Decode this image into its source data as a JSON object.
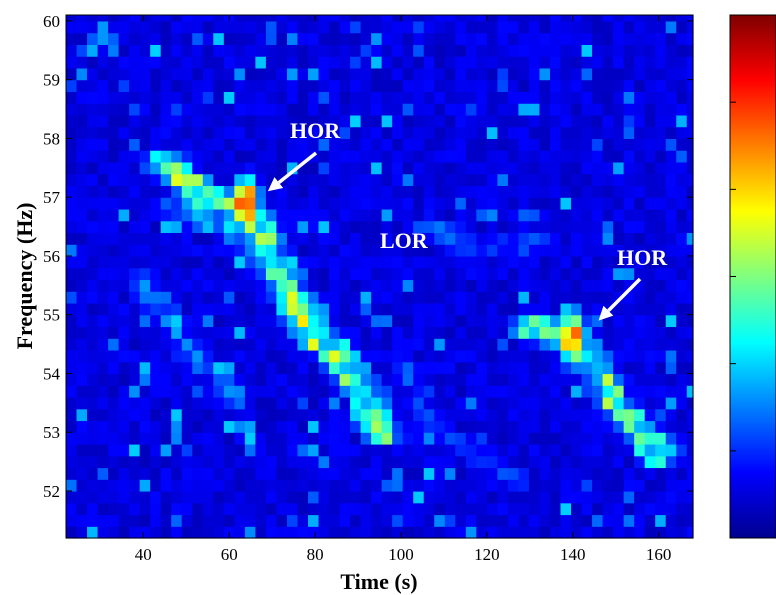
{
  "chart_data": {
    "type": "heatmap",
    "title": "",
    "xlabel": "Time (s)",
    "ylabel": "Frequency (Hz)",
    "xlim": [
      22,
      168
    ],
    "ylim": [
      51.2,
      60.1
    ],
    "x_ticks": [
      40,
      60,
      80,
      100,
      120,
      140,
      160
    ],
    "y_ticks": [
      52,
      53,
      54,
      55,
      56,
      57,
      58,
      59,
      60
    ],
    "cell_width": 2.45,
    "cell_height": 0.2,
    "colormap": "jet",
    "colorbar_tick_labels": [],
    "ridges": [
      {
        "points": [
          [
            45,
            57.6
          ],
          [
            55,
            57.0
          ],
          [
            62,
            56.9
          ],
          [
            66,
            56.6
          ],
          [
            68,
            56.2
          ],
          [
            72,
            55.7
          ],
          [
            76,
            55.1
          ],
          [
            80,
            54.6
          ],
          [
            86,
            54.3
          ],
          [
            92,
            53.6
          ],
          [
            96,
            53.0
          ]
        ],
        "peak": [
          64,
          56.9
        ],
        "intensity": 0.95
      },
      {
        "points": [
          [
            40,
            55.6
          ],
          [
            46,
            54.9
          ],
          [
            52,
            54.3
          ],
          [
            58,
            53.9
          ],
          [
            62,
            53.6
          ]
        ],
        "intensity": 0.42
      },
      {
        "points": [
          [
            48,
            56.8
          ],
          [
            56,
            56.6
          ],
          [
            62,
            56.5
          ]
        ],
        "intensity": 0.55
      },
      {
        "points": [
          [
            100,
            54.2
          ],
          [
            108,
            53.1
          ],
          [
            118,
            52.6
          ],
          [
            126,
            52.2
          ]
        ],
        "intensity": 0.35
      },
      {
        "points": [
          [
            106,
            56.5
          ],
          [
            116,
            56.2
          ],
          [
            126,
            56.2
          ],
          [
            132,
            56.3
          ]
        ],
        "intensity": 0.4
      },
      {
        "points": [
          [
            130,
            54.8
          ],
          [
            136,
            54.7
          ],
          [
            140,
            54.6
          ],
          [
            145,
            54.1
          ],
          [
            150,
            53.5
          ],
          [
            156,
            53.0
          ],
          [
            160,
            52.6
          ]
        ],
        "peak": [
          140,
          54.6
        ],
        "intensity": 0.9
      }
    ],
    "annotations": [
      {
        "text": "HOR",
        "arrow_tip": [
          69,
          57.1
        ]
      },
      {
        "text": "LOR"
      },
      {
        "text": "HOR",
        "arrow_tip": [
          146,
          54.9
        ]
      }
    ]
  }
}
